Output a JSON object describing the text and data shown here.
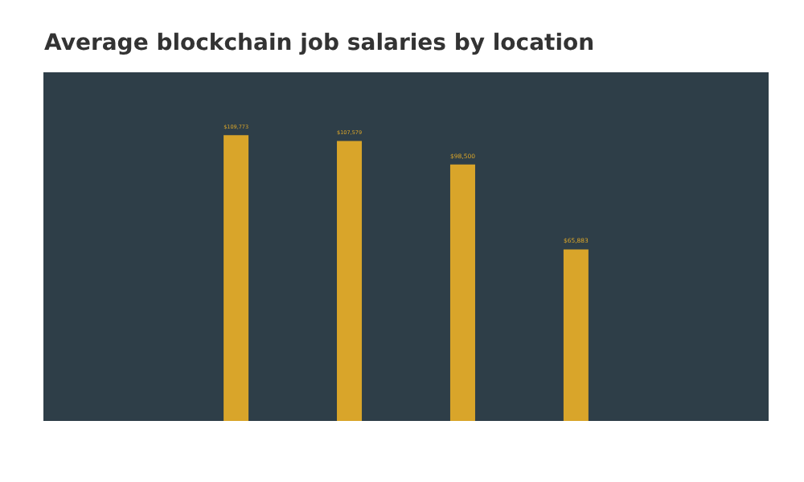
{
  "chart_data": {
    "type": "bar",
    "title": "Average blockchain job salaries by location",
    "categories": [
      null,
      null,
      null,
      null
    ],
    "values": [
      109773,
      107579,
      98500,
      65883
    ],
    "value_labels": [
      "$109,773",
      "$107,579",
      "$98,500",
      "$65,883"
    ],
    "color": "#d9a52a"
  }
}
